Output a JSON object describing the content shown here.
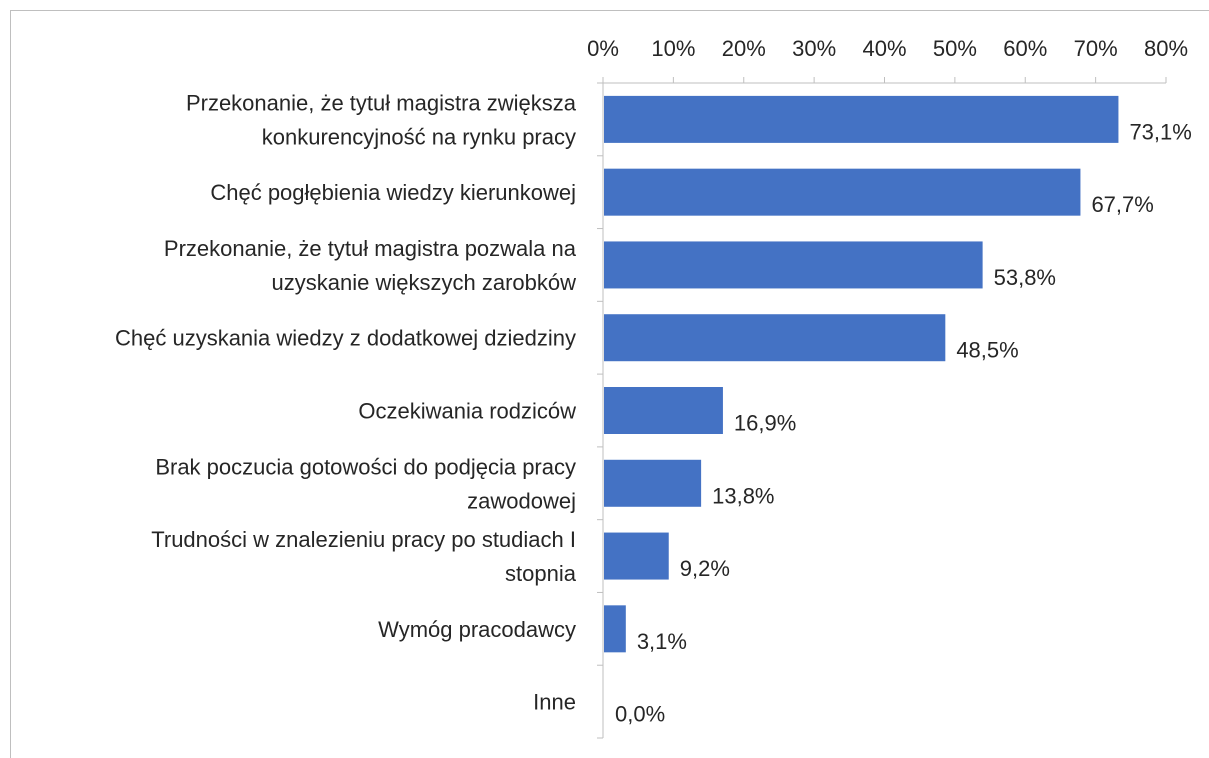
{
  "chart_data": {
    "type": "bar",
    "orientation": "horizontal",
    "categories": [
      "Przekonanie, że tytuł magistra zwiększa konkurencyjność na rynku pracy",
      "Chęć pogłębienia wiedzy kierunkowej",
      "Przekonanie, że tytuł magistra pozwala na uzyskanie większych zarobków",
      "Chęć uzyskania wiedzy z dodatkowej dziedziny",
      "Oczekiwania rodziców",
      "Brak poczucia gotowości do podjęcia pracy zawodowej",
      "Trudności w znalezieniu pracy po studiach I stopnia",
      "Wymóg pracodawcy",
      "Inne"
    ],
    "category_label_lines": [
      [
        "Przekonanie, że tytuł magistra zwiększa",
        "konkurencyjność na rynku pracy"
      ],
      [
        "Chęć pogłębienia wiedzy kierunkowej"
      ],
      [
        "Przekonanie, że tytuł magistra pozwala na",
        "uzyskanie większych zarobków"
      ],
      [
        "Chęć uzyskania wiedzy z dodatkowej dziedziny"
      ],
      [
        "Oczekiwania rodziców"
      ],
      [
        "Brak poczucia gotowości do podjęcia pracy",
        "zawodowej"
      ],
      [
        "Trudności w znalezieniu pracy po studiach I",
        "stopnia"
      ],
      [
        "Wymóg pracodawcy"
      ],
      [
        "Inne"
      ]
    ],
    "values": [
      73.1,
      67.7,
      53.8,
      48.5,
      16.9,
      13.8,
      9.2,
      3.1,
      0.0
    ],
    "data_labels": [
      "73,1%",
      "67,7%",
      "53,8%",
      "48,5%",
      "16,9%",
      "13,8%",
      "9,2%",
      "3,1%",
      "0,0%"
    ],
    "x_ticks": [
      0,
      10,
      20,
      30,
      40,
      50,
      60,
      70,
      80
    ],
    "x_tick_labels": [
      "0%",
      "10%",
      "20%",
      "30%",
      "40%",
      "50%",
      "60%",
      "70%",
      "80%"
    ],
    "xlim": [
      0,
      80
    ],
    "x_axis_position": "top",
    "grid": false,
    "legend": false,
    "bar_color": "#4472C4",
    "axis_color": "#bfbfbf",
    "text_color": "#262626"
  }
}
